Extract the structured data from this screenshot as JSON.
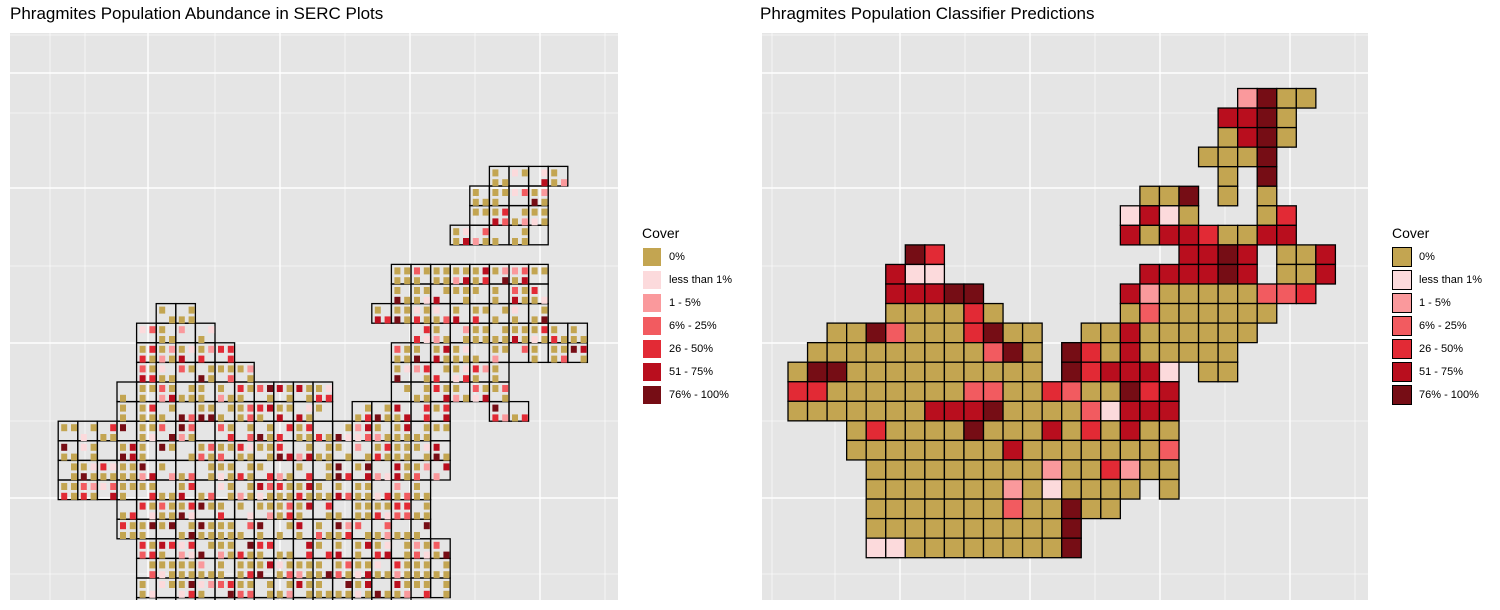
{
  "colors": {
    "panel_bg": "#E5E5E5",
    "grid_line": "#FFFFFF",
    "outline": "#000000"
  },
  "chart_data": [
    {
      "type": "heatmap",
      "title": "Phragmites Population Abundance in SERC Plots",
      "xlabel": "",
      "ylabel": "",
      "grid": true,
      "legend": {
        "title": "Cover",
        "placement": "right",
        "entries": [
          {
            "label": "0%",
            "color": "#C3A551"
          },
          {
            "label": "less than 1%",
            "color": "#FCDADC"
          },
          {
            "label": "1 - 5%",
            "color": "#FA999C"
          },
          {
            "label": "6% - 25%",
            "color": "#F25B60"
          },
          {
            "label": "26 - 50%",
            "color": "#E22A35"
          },
          {
            "label": "51 - 75%",
            "color": "#B90E1E"
          },
          {
            "label": "76% - 100%",
            "color": "#760D15"
          }
        ]
      },
      "rows": [
        "...................................SS...........",
        "................................................",
        "...........................................00....",
        "...........................................00....",
        "..........................................00.0...",
        "..........................................00000..",
        "........................................00000....",
        "...................................00000000000....",
        "....................................000000000000..",
        "...................................0000000000000..",
        "..................................000000000000000.",
        "...................................0000000000000..",
        ".................................000000000000000..",
        "......000.....................000000000000000000..",
        "......000000...................000000000000000000.",
        "......0000000.................00000000000000000...",
        "....00000000000...............00000000000000000...",
        "....00000000000000...........0000000000000000.....",
        "..0000000000000000.........00000000000000000000...",
        "..00000000000000000.......00000000000000000000....",
        "...000000000000000000...0000000000000000000000....",
        "..000000000000000000000000000000000000000000......",
        ".00000000000000000000000000000000000000000000.....",
        "..000000000000000000000000000000000000000000......",
        ".00000000000000000000000000000000000000000.......",
        "....0000000000000000000000000000000000000000......",
        "....000000000000000000000000000000000000000.......",
        ".....0000000000000000000000000000000000000........",
        "......00000000000000000000000000000000000.........",
        "......000000000000000000000000000000000...........",
        ".......00000000000000000000000000000000...........",
        "........00000000000000000000000000000.............",
        "........000000000000000000000000000...............",
        "........0000000000000000000000000................"
      ],
      "grid_boxes": [
        [
          23,
          4
        ],
        [
          24,
          4
        ],
        [
          25,
          4
        ],
        [
          26,
          4
        ],
        [
          22,
          5
        ],
        [
          23,
          5
        ],
        [
          24,
          5
        ],
        [
          25,
          5
        ],
        [
          22,
          6
        ],
        [
          23,
          6
        ],
        [
          24,
          6
        ],
        [
          25,
          6
        ],
        [
          21,
          7
        ],
        [
          22,
          7
        ],
        [
          23,
          7
        ],
        [
          24,
          7
        ],
        [
          25,
          7
        ],
        [
          18,
          9
        ],
        [
          19,
          9
        ],
        [
          20,
          9
        ],
        [
          21,
          9
        ],
        [
          22,
          9
        ],
        [
          23,
          9
        ],
        [
          24,
          9
        ],
        [
          25,
          9
        ],
        [
          18,
          10
        ],
        [
          19,
          10
        ],
        [
          20,
          10
        ],
        [
          21,
          10
        ],
        [
          22,
          10
        ],
        [
          23,
          10
        ],
        [
          24,
          10
        ],
        [
          25,
          10
        ],
        [
          17,
          11
        ],
        [
          18,
          11
        ],
        [
          19,
          11
        ],
        [
          20,
          11
        ],
        [
          21,
          11
        ],
        [
          22,
          11
        ],
        [
          23,
          11
        ],
        [
          24,
          11
        ],
        [
          25,
          11
        ],
        [
          19,
          12
        ],
        [
          20,
          12
        ],
        [
          21,
          12
        ],
        [
          22,
          12
        ],
        [
          23,
          12
        ],
        [
          24,
          12
        ],
        [
          25,
          12
        ],
        [
          26,
          12
        ],
        [
          27,
          12
        ],
        [
          18,
          13
        ],
        [
          19,
          13
        ],
        [
          20,
          13
        ],
        [
          21,
          13
        ],
        [
          22,
          13
        ],
        [
          23,
          13
        ],
        [
          24,
          13
        ],
        [
          25,
          13
        ],
        [
          26,
          13
        ],
        [
          27,
          13
        ],
        [
          18,
          14
        ],
        [
          19,
          14
        ],
        [
          20,
          14
        ],
        [
          21,
          14
        ],
        [
          22,
          14
        ],
        [
          23,
          14
        ],
        [
          18,
          15
        ],
        [
          19,
          15
        ],
        [
          20,
          15
        ],
        [
          21,
          15
        ],
        [
          22,
          15
        ],
        [
          23,
          15
        ],
        [
          23,
          16
        ],
        [
          24,
          16
        ],
        [
          6,
          11
        ],
        [
          7,
          11
        ],
        [
          5,
          12
        ],
        [
          6,
          12
        ],
        [
          7,
          12
        ],
        [
          8,
          12
        ],
        [
          5,
          13
        ],
        [
          6,
          13
        ],
        [
          7,
          13
        ],
        [
          8,
          13
        ],
        [
          9,
          13
        ],
        [
          5,
          14
        ],
        [
          6,
          14
        ],
        [
          7,
          14
        ],
        [
          8,
          14
        ],
        [
          9,
          14
        ],
        [
          10,
          14
        ],
        [
          4,
          15
        ],
        [
          5,
          15
        ],
        [
          6,
          15
        ],
        [
          7,
          15
        ],
        [
          8,
          15
        ],
        [
          9,
          15
        ],
        [
          10,
          15
        ],
        [
          11,
          15
        ],
        [
          12,
          15
        ],
        [
          13,
          15
        ],
        [
          14,
          15
        ],
        [
          4,
          16
        ],
        [
          5,
          16
        ],
        [
          6,
          16
        ],
        [
          7,
          16
        ],
        [
          8,
          16
        ],
        [
          9,
          16
        ],
        [
          10,
          16
        ],
        [
          11,
          16
        ],
        [
          12,
          16
        ],
        [
          13,
          16
        ],
        [
          14,
          16
        ],
        [
          16,
          16
        ],
        [
          17,
          16
        ],
        [
          18,
          16
        ],
        [
          19,
          16
        ],
        [
          20,
          16
        ],
        [
          1,
          17
        ],
        [
          2,
          17
        ],
        [
          3,
          17
        ],
        [
          4,
          17
        ],
        [
          5,
          17
        ],
        [
          6,
          17
        ],
        [
          7,
          17
        ],
        [
          8,
          17
        ],
        [
          9,
          17
        ],
        [
          10,
          17
        ],
        [
          11,
          17
        ],
        [
          12,
          17
        ],
        [
          13,
          17
        ],
        [
          14,
          17
        ],
        [
          15,
          17
        ],
        [
          16,
          17
        ],
        [
          17,
          17
        ],
        [
          18,
          17
        ],
        [
          19,
          17
        ],
        [
          20,
          17
        ],
        [
          1,
          18
        ],
        [
          2,
          18
        ],
        [
          3,
          18
        ],
        [
          4,
          18
        ],
        [
          5,
          18
        ],
        [
          6,
          18
        ],
        [
          7,
          18
        ],
        [
          8,
          18
        ],
        [
          9,
          18
        ],
        [
          10,
          18
        ],
        [
          11,
          18
        ],
        [
          12,
          18
        ],
        [
          13,
          18
        ],
        [
          14,
          18
        ],
        [
          15,
          18
        ],
        [
          16,
          18
        ],
        [
          17,
          18
        ],
        [
          18,
          18
        ],
        [
          19,
          18
        ],
        [
          20,
          18
        ],
        [
          1,
          19
        ],
        [
          2,
          19
        ],
        [
          3,
          19
        ],
        [
          4,
          19
        ],
        [
          5,
          19
        ],
        [
          6,
          19
        ],
        [
          7,
          19
        ],
        [
          8,
          19
        ],
        [
          9,
          19
        ],
        [
          10,
          19
        ],
        [
          11,
          19
        ],
        [
          12,
          19
        ],
        [
          13,
          19
        ],
        [
          14,
          19
        ],
        [
          15,
          19
        ],
        [
          16,
          19
        ],
        [
          17,
          19
        ],
        [
          18,
          19
        ],
        [
          19,
          19
        ],
        [
          20,
          19
        ],
        [
          1,
          20
        ],
        [
          2,
          20
        ],
        [
          3,
          20
        ],
        [
          4,
          20
        ],
        [
          5,
          20
        ],
        [
          6,
          20
        ],
        [
          7,
          20
        ],
        [
          8,
          20
        ],
        [
          9,
          20
        ],
        [
          10,
          20
        ],
        [
          11,
          20
        ],
        [
          12,
          20
        ],
        [
          13,
          20
        ],
        [
          14,
          20
        ],
        [
          15,
          20
        ],
        [
          16,
          20
        ],
        [
          17,
          20
        ],
        [
          18,
          20
        ],
        [
          19,
          20
        ],
        [
          4,
          21
        ],
        [
          5,
          21
        ],
        [
          6,
          21
        ],
        [
          7,
          21
        ],
        [
          8,
          21
        ],
        [
          9,
          21
        ],
        [
          10,
          21
        ],
        [
          11,
          21
        ],
        [
          12,
          21
        ],
        [
          13,
          21
        ],
        [
          14,
          21
        ],
        [
          15,
          21
        ],
        [
          16,
          21
        ],
        [
          17,
          21
        ],
        [
          18,
          21
        ],
        [
          19,
          21
        ],
        [
          4,
          22
        ],
        [
          5,
          22
        ],
        [
          6,
          22
        ],
        [
          7,
          22
        ],
        [
          8,
          22
        ],
        [
          9,
          22
        ],
        [
          10,
          22
        ],
        [
          11,
          22
        ],
        [
          12,
          22
        ],
        [
          13,
          22
        ],
        [
          14,
          22
        ],
        [
          15,
          22
        ],
        [
          16,
          22
        ],
        [
          17,
          22
        ],
        [
          18,
          22
        ],
        [
          19,
          22
        ],
        [
          5,
          23
        ],
        [
          6,
          23
        ],
        [
          7,
          23
        ],
        [
          8,
          23
        ],
        [
          9,
          23
        ],
        [
          10,
          23
        ],
        [
          11,
          23
        ],
        [
          12,
          23
        ],
        [
          13,
          23
        ],
        [
          14,
          23
        ],
        [
          15,
          23
        ],
        [
          16,
          23
        ],
        [
          17,
          23
        ],
        [
          18,
          23
        ],
        [
          19,
          23
        ],
        [
          20,
          23
        ],
        [
          5,
          24
        ],
        [
          6,
          24
        ],
        [
          7,
          24
        ],
        [
          8,
          24
        ],
        [
          9,
          24
        ],
        [
          10,
          24
        ],
        [
          11,
          24
        ],
        [
          12,
          24
        ],
        [
          13,
          24
        ],
        [
          14,
          24
        ],
        [
          15,
          24
        ],
        [
          16,
          24
        ],
        [
          17,
          24
        ],
        [
          18,
          24
        ],
        [
          19,
          24
        ],
        [
          20,
          24
        ],
        [
          5,
          25
        ],
        [
          6,
          25
        ],
        [
          7,
          25
        ],
        [
          8,
          25
        ],
        [
          9,
          25
        ],
        [
          10,
          25
        ],
        [
          11,
          25
        ],
        [
          12,
          25
        ],
        [
          13,
          25
        ],
        [
          14,
          25
        ],
        [
          15,
          25
        ],
        [
          16,
          25
        ],
        [
          17,
          25
        ],
        [
          18,
          25
        ],
        [
          19,
          25
        ],
        [
          20,
          25
        ],
        [
          5,
          26
        ],
        [
          6,
          26
        ],
        [
          7,
          26
        ],
        [
          8,
          26
        ],
        [
          9,
          26
        ],
        [
          10,
          26
        ],
        [
          11,
          26
        ],
        [
          12,
          26
        ],
        [
          13,
          26
        ],
        [
          14,
          26
        ],
        [
          15,
          26
        ],
        [
          16,
          26
        ],
        [
          17,
          26
        ],
        [
          18,
          26
        ],
        [
          5,
          27
        ],
        [
          6,
          27
        ],
        [
          7,
          27
        ],
        [
          8,
          27
        ],
        [
          9,
          27
        ],
        [
          10,
          27
        ],
        [
          11,
          27
        ],
        [
          12,
          27
        ],
        [
          13,
          27
        ],
        [
          14,
          27
        ],
        [
          15,
          27
        ],
        [
          16,
          27
        ]
      ]
    },
    {
      "type": "heatmap",
      "title": "Phragmites Population Classifier Predictions",
      "xlabel": "",
      "ylabel": "",
      "grid": true,
      "legend": {
        "title": "Cover",
        "placement": "right",
        "entries": [
          {
            "label": "0%",
            "color": "#C3A551"
          },
          {
            "label": "less than 1%",
            "color": "#FCDADC"
          },
          {
            "label": "1 - 5%",
            "color": "#FA999C"
          },
          {
            "label": "6% - 25%",
            "color": "#F25B60"
          },
          {
            "label": "26 - 50%",
            "color": "#E22A35"
          },
          {
            "label": "51 - 75%",
            "color": "#B90E1E"
          },
          {
            "label": "76% - 100%",
            "color": "#760D15"
          }
        ]
      },
      "rows": [
        "......................2600....",
        ".....................5650.....",
        ".....................05..0.....",
        "....................0060.......",
        "..........................",
        "...................0060.0.6.....",
        ".................1510..0.4......",
        "................4055550055.......",
        "..........................",
        "....61...................556000005",
        "...51..................0051...0045",
        "...006...........................",
        "....00005....................",
        "..00560000.............",
        "..0000040066...........",
        "..00000000000...........",
        "..0000000000000..........",
        "...........................",
        "...........................",
        "...........................",
        "...........................",
        "...........................",
        "...........................",
        "...........................",
        "..........................."
      ]
    }
  ]
}
